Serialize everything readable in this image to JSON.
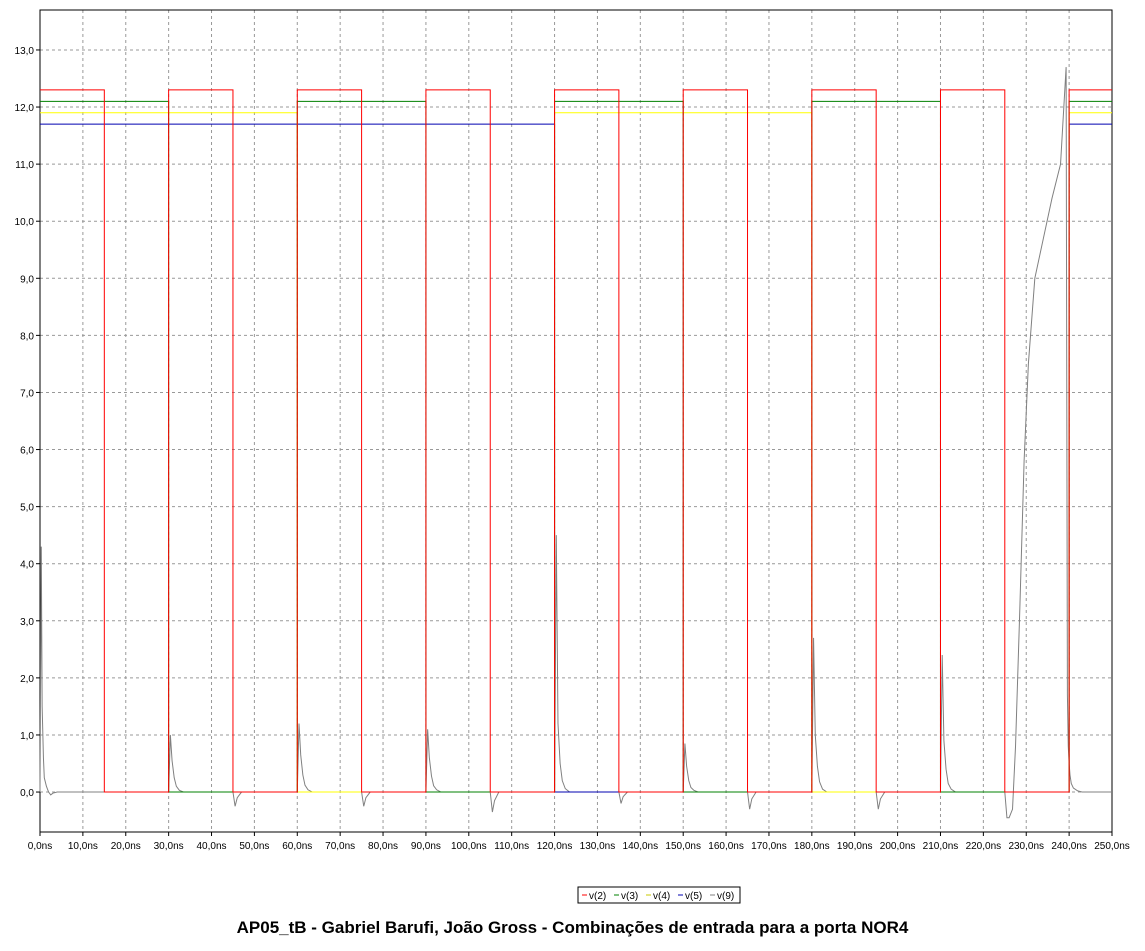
{
  "chart_data": {
    "type": "line",
    "title": "AP05_tB - Gabriel Barufi, João Gross - Combinações de entrada para a porta NOR4",
    "xlabel": "",
    "ylabel": "",
    "xlim": [
      0,
      250
    ],
    "ylim": [
      -0.7,
      13.7
    ],
    "x_unit": "ns",
    "grid": true,
    "legend_position": "bottom-center",
    "x_ticks": [
      0,
      10,
      20,
      30,
      40,
      50,
      60,
      70,
      80,
      90,
      100,
      110,
      120,
      130,
      140,
      150,
      160,
      170,
      180,
      190,
      200,
      210,
      220,
      230,
      240,
      250
    ],
    "x_tick_labels": [
      "0,0ns",
      "10,0ns",
      "20,0ns",
      "30,0ns",
      "40,0ns",
      "50,0ns",
      "60,0ns",
      "70,0ns",
      "80,0ns",
      "90,0ns",
      "100,0ns",
      "110,0ns",
      "120,0ns",
      "130,0ns",
      "140,0ns",
      "150,0ns",
      "160,0ns",
      "170,0ns",
      "180,0ns",
      "190,0ns",
      "200,0ns",
      "210,0ns",
      "220,0ns",
      "230,0ns",
      "240,0ns",
      "250,0ns"
    ],
    "y_ticks": [
      0,
      1,
      2,
      3,
      4,
      5,
      6,
      7,
      8,
      9,
      10,
      11,
      12,
      13
    ],
    "y_tick_labels": [
      "0,0",
      "1,0",
      "2,0",
      "3,0",
      "4,0",
      "5,0",
      "6,0",
      "7,0",
      "8,0",
      "9,0",
      "10,0",
      "11,0",
      "12,0",
      "13,0"
    ],
    "series": [
      {
        "name": "v(2)",
        "color": "#ff0000",
        "x": [
          0,
          15,
          15,
          30,
          30,
          45,
          45,
          60,
          60,
          75,
          75,
          90,
          90,
          105,
          105,
          120,
          120,
          135,
          135,
          150,
          150,
          165,
          165,
          180,
          180,
          195,
          195,
          210,
          210,
          225,
          225,
          240,
          240,
          250
        ],
        "y": [
          12.3,
          12.3,
          0,
          0,
          12.3,
          12.3,
          0,
          0,
          12.3,
          12.3,
          0,
          0,
          12.3,
          12.3,
          0,
          0,
          12.3,
          12.3,
          0,
          0,
          12.3,
          12.3,
          0,
          0,
          12.3,
          12.3,
          0,
          0,
          12.3,
          12.3,
          0,
          0,
          12.3,
          12.3
        ]
      },
      {
        "name": "v(3)",
        "color": "#008000",
        "x": [
          0,
          30,
          30,
          60,
          60,
          90,
          90,
          120,
          120,
          150,
          150,
          180,
          180,
          210,
          210,
          240,
          240,
          250
        ],
        "y": [
          12.1,
          12.1,
          0,
          0,
          12.1,
          12.1,
          0,
          0,
          12.1,
          12.1,
          0,
          0,
          12.1,
          12.1,
          0,
          0,
          12.1,
          12.1
        ]
      },
      {
        "name": "v(4)",
        "color": "#ffff00",
        "x": [
          0,
          60,
          60,
          120,
          120,
          180,
          180,
          240,
          240,
          250
        ],
        "y": [
          11.9,
          11.9,
          0,
          0,
          11.9,
          11.9,
          0,
          0,
          11.9,
          11.9
        ]
      },
      {
        "name": "v(5)",
        "color": "#0000b0",
        "x": [
          0,
          120,
          120,
          240,
          240,
          250
        ],
        "y": [
          11.7,
          11.7,
          0,
          0,
          11.7,
          11.7
        ]
      },
      {
        "name": "v(9)",
        "color": "#808080",
        "x": [
          0,
          0.3,
          0.5,
          0.8,
          1,
          1.5,
          2,
          2.5,
          3,
          4,
          30,
          30.4,
          30.8,
          31.3,
          31.8,
          32.5,
          33.5,
          45,
          45.5,
          46,
          47,
          60,
          60.4,
          60.8,
          61.3,
          61.8,
          62.5,
          63.5,
          75,
          75.5,
          76,
          77,
          90,
          90.4,
          90.8,
          91.3,
          91.8,
          92.5,
          93.5,
          105,
          105.5,
          106,
          107,
          120,
          120.4,
          120.8,
          121.3,
          121.8,
          122.5,
          123.5,
          135,
          135.5,
          136,
          137,
          150,
          150.4,
          150.8,
          151.3,
          151.8,
          152.5,
          153.5,
          165,
          165.5,
          166,
          167,
          180,
          180.4,
          180.8,
          181.3,
          181.8,
          182.5,
          183.5,
          195,
          195.5,
          196,
          197,
          210,
          210.4,
          210.8,
          211.3,
          211.8,
          212.5,
          213.5,
          225,
          225.5,
          226,
          226.8,
          227.5,
          228.5,
          229.5,
          230.5,
          232,
          234,
          236,
          238,
          239.3,
          239.6,
          239.8,
          240,
          240.2,
          240.5,
          241,
          242,
          243,
          244,
          250
        ],
        "y": [
          0,
          4.3,
          1.5,
          0.6,
          0.25,
          0.1,
          0,
          -0.05,
          -0.02,
          0,
          0,
          1.0,
          0.55,
          0.25,
          0.1,
          0.03,
          0,
          0,
          -0.25,
          -0.1,
          0,
          0,
          1.2,
          0.65,
          0.3,
          0.12,
          0.04,
          0,
          0,
          -0.25,
          -0.1,
          0,
          0,
          1.1,
          0.6,
          0.28,
          0.11,
          0.04,
          0,
          0,
          -0.35,
          -0.15,
          0,
          0,
          4.5,
          1.2,
          0.5,
          0.2,
          0.06,
          0,
          0,
          -0.2,
          -0.08,
          0,
          0,
          0.85,
          0.45,
          0.2,
          0.08,
          0.03,
          0,
          0,
          -0.3,
          -0.12,
          0,
          0,
          2.7,
          1.0,
          0.45,
          0.18,
          0.05,
          0,
          0,
          -0.3,
          -0.12,
          0,
          0,
          2.4,
          0.9,
          0.4,
          0.15,
          0.05,
          0,
          0,
          -0.45,
          -0.45,
          -0.3,
          0.8,
          3.2,
          5.8,
          7.5,
          9.0,
          9.7,
          10.4,
          11.0,
          12.7,
          1.7,
          0.8,
          0.5,
          0.3,
          0.15,
          0.07,
          0.02,
          0,
          0,
          0
        ]
      }
    ]
  }
}
